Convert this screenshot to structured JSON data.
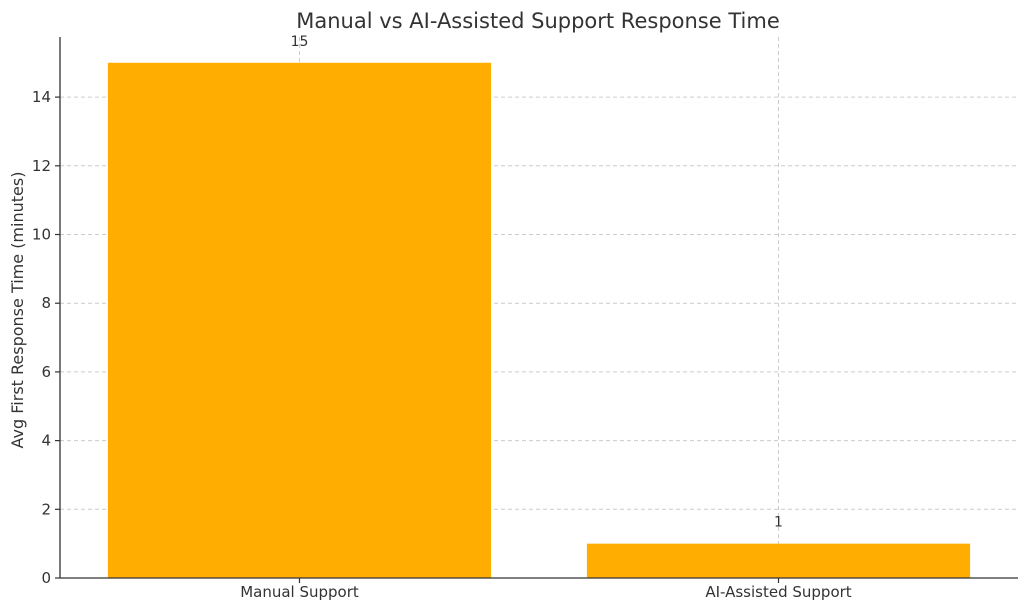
{
  "chart_data": {
    "type": "bar",
    "title": "Manual vs AI-Assisted Support Response Time",
    "xlabel": "",
    "ylabel": "Avg First Response Time (minutes)",
    "categories": [
      "Manual Support",
      "AI-Assisted Support"
    ],
    "values": [
      15,
      1
    ],
    "data_labels": [
      "15",
      "1"
    ],
    "ylim": [
      0,
      15.75
    ],
    "yticks": [
      0,
      2,
      4,
      6,
      8,
      10,
      12,
      14
    ],
    "grid": true,
    "bar_color": "#ffad00"
  }
}
